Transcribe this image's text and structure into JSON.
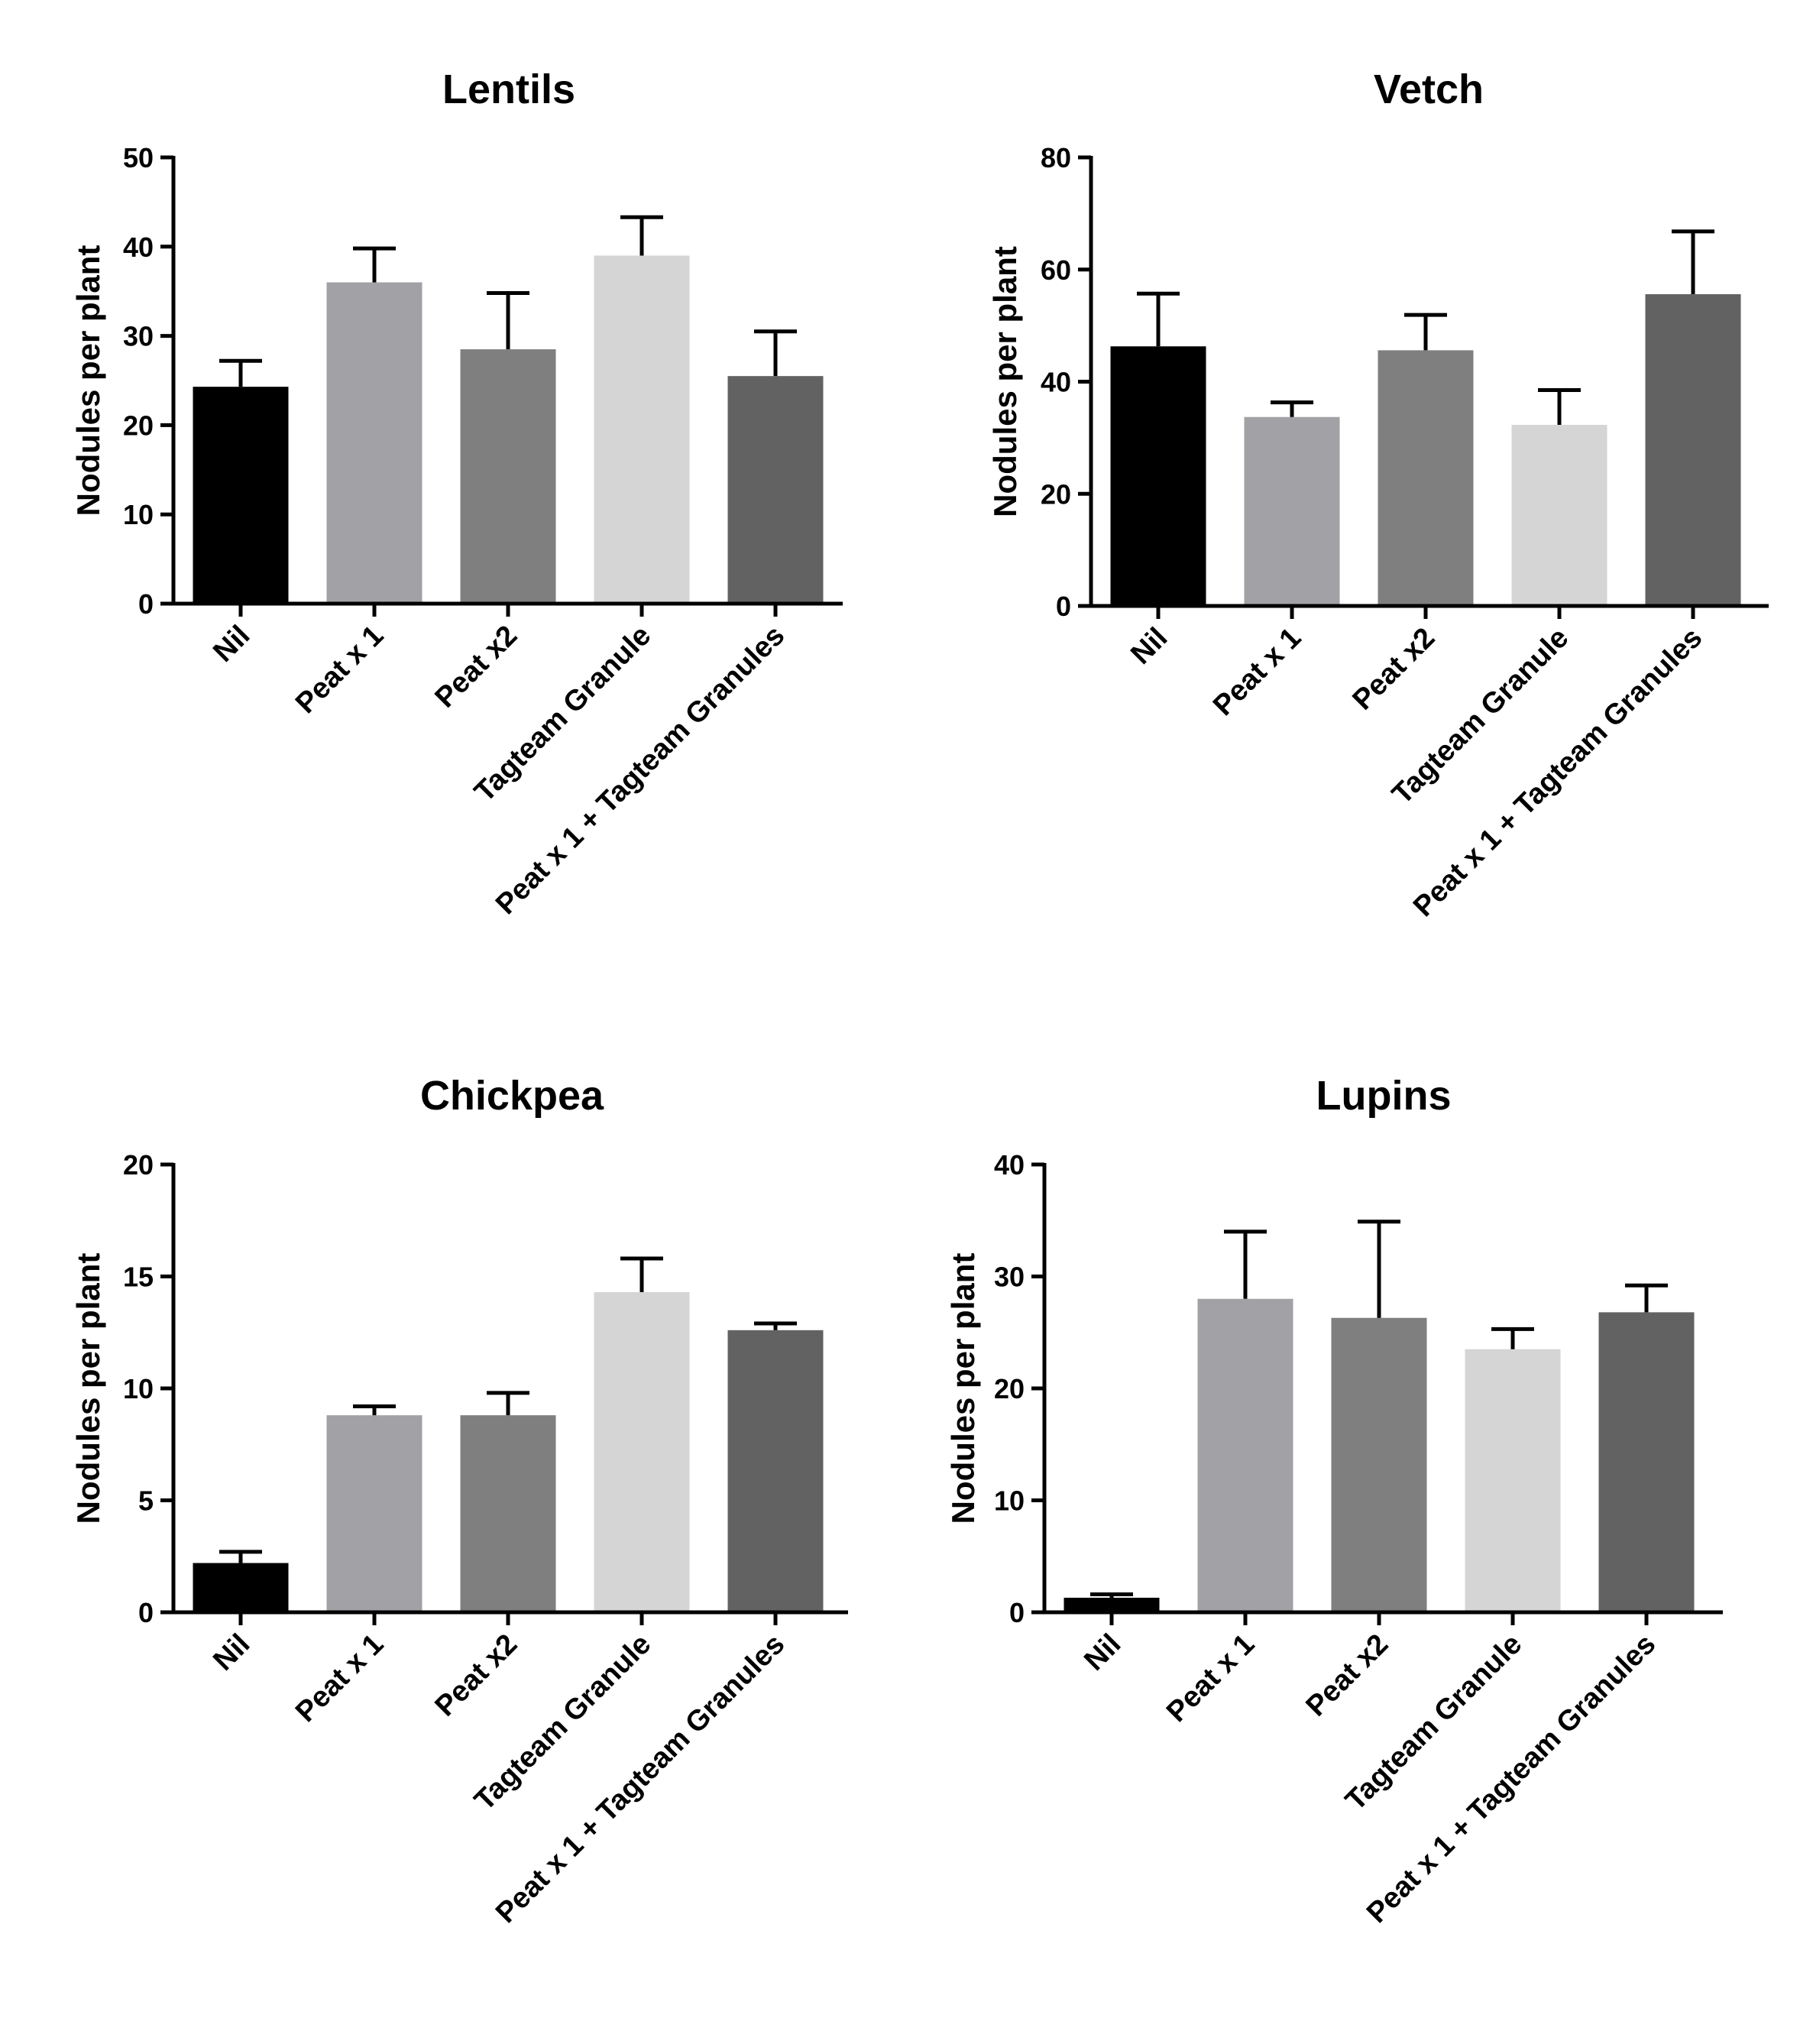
{
  "chart_data": [
    {
      "type": "bar",
      "title": "Lentils",
      "ylabel": "Nodules per plant",
      "ylim": [
        0,
        50
      ],
      "yticks": [
        0,
        10,
        20,
        30,
        40,
        50
      ],
      "categories": [
        "Nil",
        "Peat x 1",
        "Peat x2",
        "Tagteam Granule",
        "Peat x 1 + Tagteam Granules"
      ],
      "values": [
        24.3,
        36.0,
        28.5,
        39.0,
        25.5
      ],
      "error_upper": [
        2.9,
        3.8,
        6.3,
        4.3,
        5.0
      ],
      "colors": [
        "#000000",
        "#a2a2a6",
        "#7f7f7f",
        "#d5d5d5",
        "#626262"
      ]
    },
    {
      "type": "bar",
      "title": "Vetch",
      "ylabel": "Nodules per plant",
      "ylim": [
        0,
        80
      ],
      "yticks": [
        0,
        20,
        40,
        60,
        80
      ],
      "categories": [
        "Nil",
        "Peat x 1",
        "Peat x2",
        "Tagteam Granule",
        "Peat x 1 + Tagteam Granules"
      ],
      "values": [
        46.3,
        33.7,
        45.6,
        32.3,
        55.6
      ],
      "error_upper": [
        9.4,
        2.6,
        6.3,
        6.2,
        11.2
      ],
      "colors": [
        "#000000",
        "#a2a2a6",
        "#7f7f7f",
        "#d5d5d5",
        "#626262"
      ]
    },
    {
      "type": "bar",
      "title": "Chickpea",
      "ylabel": "Nodules per plant",
      "ylim": [
        0,
        20
      ],
      "yticks": [
        0,
        5,
        10,
        15,
        20
      ],
      "categories": [
        "Nil",
        "Peat x 1",
        "Peat x2",
        "Tagteam Granule",
        "Peat x 1 + Tagteam Granules"
      ],
      "values": [
        2.2,
        8.8,
        8.8,
        14.3,
        12.6
      ],
      "error_upper": [
        0.5,
        0.4,
        1.0,
        1.5,
        0.3
      ],
      "colors": [
        "#000000",
        "#a2a2a6",
        "#7f7f7f",
        "#d5d5d5",
        "#626262"
      ]
    },
    {
      "type": "bar",
      "title": "Lupins",
      "ylabel": "Nodules per plant",
      "ylim": [
        0,
        40
      ],
      "yticks": [
        0,
        10,
        20,
        30,
        40
      ],
      "categories": [
        "Nil",
        "Peat x 1",
        "Peat x2",
        "Tagteam Granule",
        "Peat x 1 + Tagteam Granules"
      ],
      "values": [
        1.3,
        28.0,
        26.3,
        23.5,
        26.8
      ],
      "error_upper": [
        0.3,
        6.0,
        8.6,
        1.8,
        2.4
      ],
      "colors": [
        "#000000",
        "#a2a2a6",
        "#7f7f7f",
        "#d5d5d5",
        "#626262"
      ]
    }
  ]
}
